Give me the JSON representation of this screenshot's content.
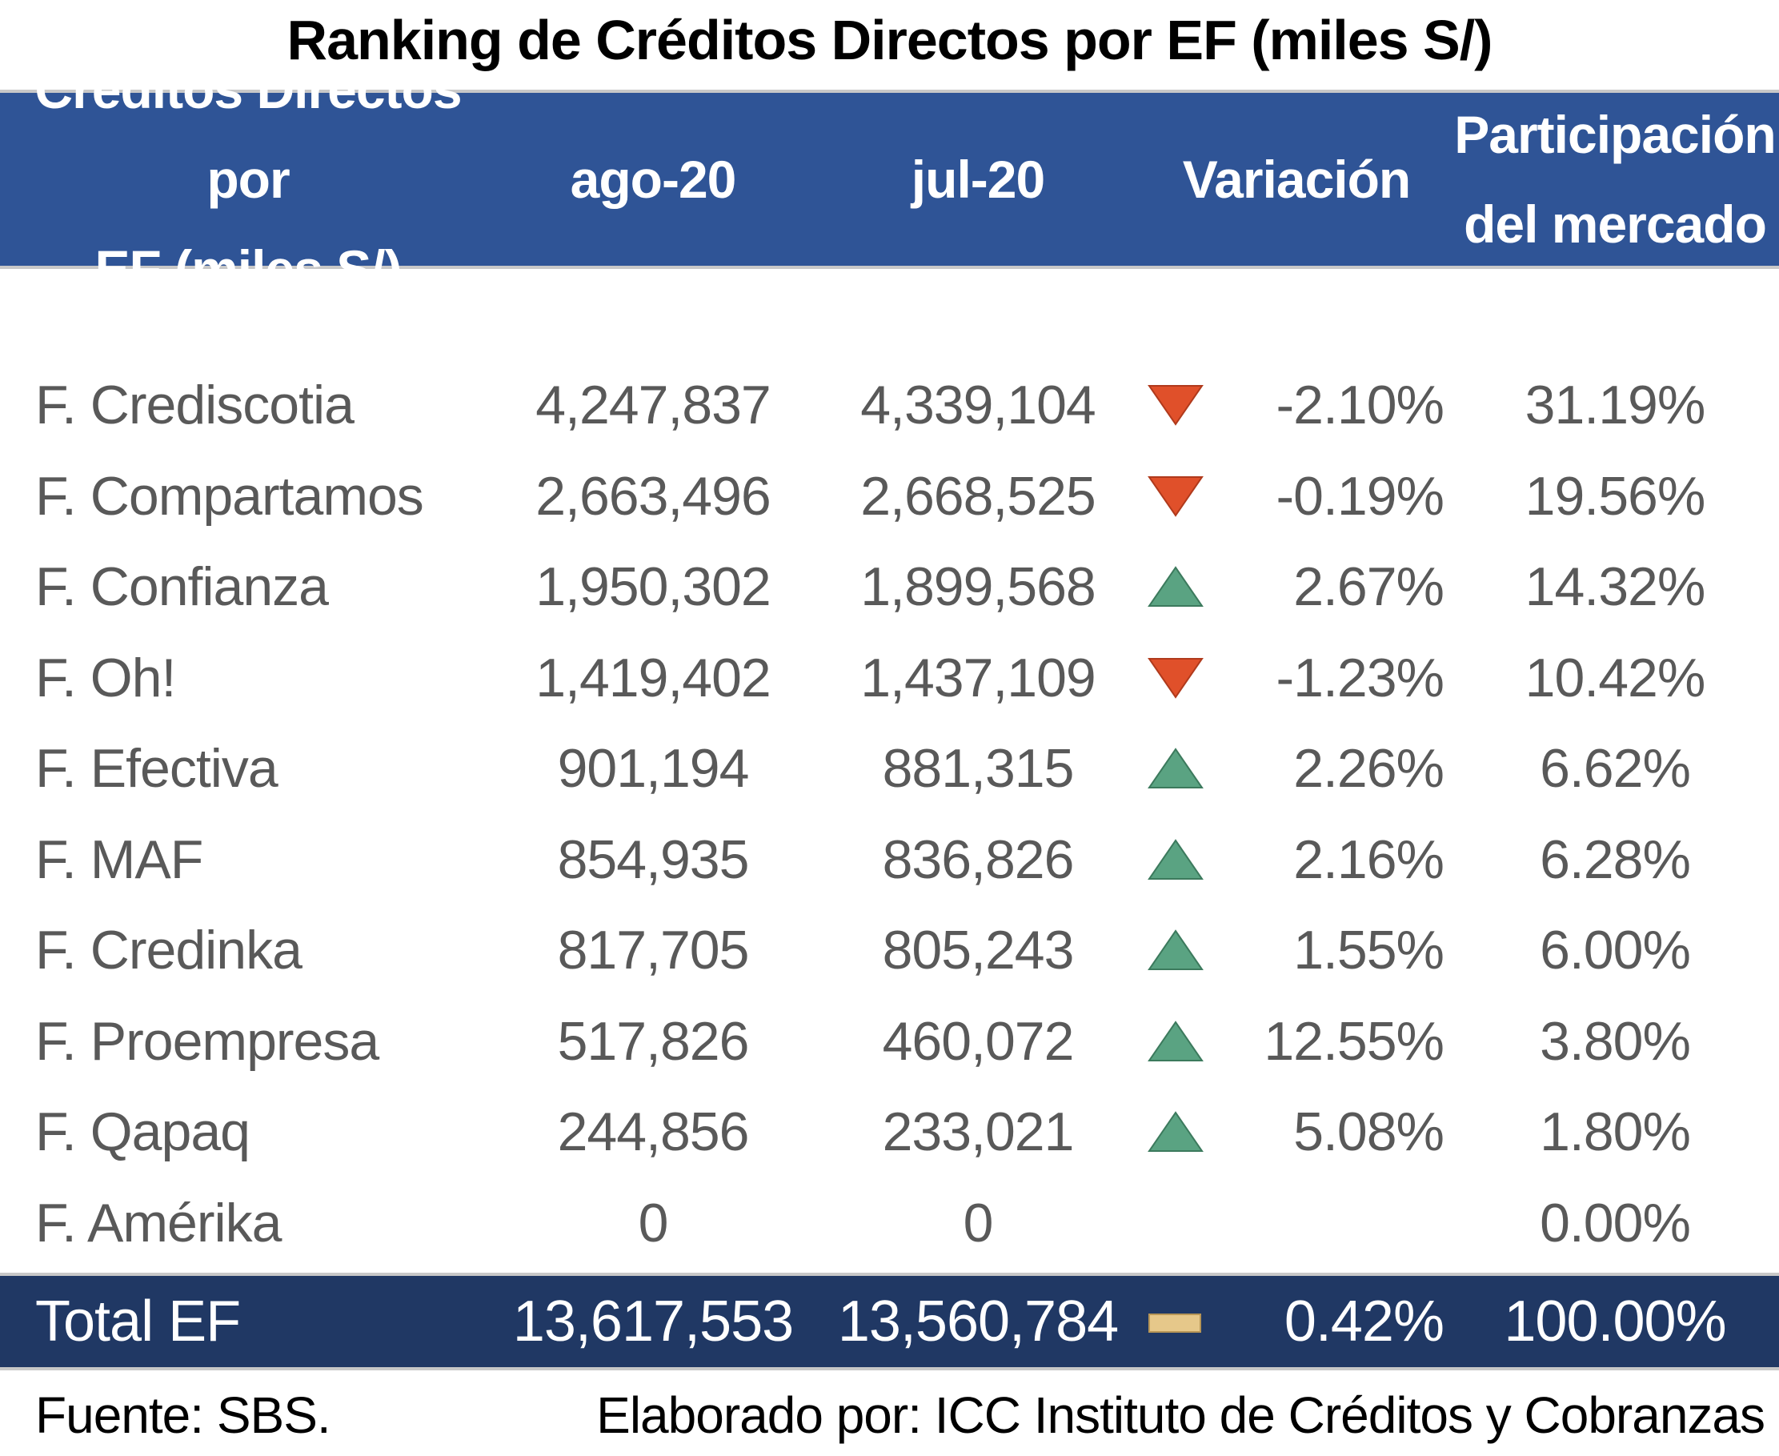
{
  "title": "Ranking de Créditos Directos por EF (miles S/)",
  "header": {
    "col0_line1": "Créditos Directos por",
    "col0_line2": "EF (miles S/)",
    "col1": "ago-20",
    "col2": "jul-20",
    "col3": "Variación",
    "col4_line1": "Participación",
    "col4_line2": "del mercado"
  },
  "colors": {
    "header_bg": "#2f5496",
    "total_bg": "#203864",
    "down": "#e0502a",
    "up": "#5aa382",
    "flat": "#e6c88a"
  },
  "rows": [
    {
      "name": "F. Crediscotia",
      "ago": "4,247,837",
      "jul": "4,339,104",
      "trend": "down",
      "var": "-2.10%",
      "share": "31.19%"
    },
    {
      "name": "F. Compartamos",
      "ago": "2,663,496",
      "jul": "2,668,525",
      "trend": "down",
      "var": "-0.19%",
      "share": "19.56%"
    },
    {
      "name": "F. Confianza",
      "ago": "1,950,302",
      "jul": "1,899,568",
      "trend": "up",
      "var": "2.67%",
      "share": "14.32%"
    },
    {
      "name": "F. Oh!",
      "ago": "1,419,402",
      "jul": "1,437,109",
      "trend": "down",
      "var": "-1.23%",
      "share": "10.42%"
    },
    {
      "name": "F. Efectiva",
      "ago": "901,194",
      "jul": "881,315",
      "trend": "up",
      "var": "2.26%",
      "share": "6.62%"
    },
    {
      "name": "F. MAF",
      "ago": "854,935",
      "jul": "836,826",
      "trend": "up",
      "var": "2.16%",
      "share": "6.28%"
    },
    {
      "name": "F. Credinka",
      "ago": "817,705",
      "jul": "805,243",
      "trend": "up",
      "var": "1.55%",
      "share": "6.00%"
    },
    {
      "name": " F. Proempresa",
      "ago": "517,826",
      "jul": "460,072",
      "trend": "up",
      "var": "12.55%",
      "share": "3.80%"
    },
    {
      "name": "F. Qapaq",
      "ago": "244,856",
      "jul": "233,021",
      "trend": "up",
      "var": "5.08%",
      "share": "1.80%"
    },
    {
      "name": "F. Amérika",
      "ago": "0",
      "jul": "0",
      "trend": "none",
      "var": "",
      "share": "0.00%"
    }
  ],
  "total": {
    "name": "Total EF",
    "ago": "13,617,553",
    "jul": "13,560,784",
    "trend": "flat",
    "var": "0.42%",
    "share": "100.00%"
  },
  "footer": {
    "source": "Fuente: SBS.",
    "credit": "Elaborado por: ICC Instituto de Créditos y Cobranzas"
  }
}
